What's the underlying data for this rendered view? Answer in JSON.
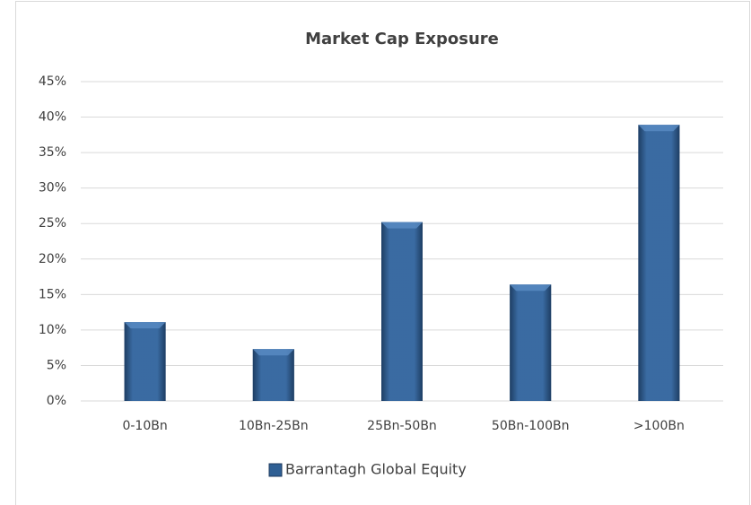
{
  "chart_data": {
    "type": "bar",
    "title": "Market Cap Exposure",
    "categories": [
      "0-10Bn",
      "10Bn-25Bn",
      "25Bn-50Bn",
      "50Bn-100Bn",
      ">100Bn"
    ],
    "series": [
      {
        "name": "Barrantagh Global Equity",
        "color": "#2f5f94",
        "values": [
          11.1,
          7.3,
          25.2,
          16.4,
          38.9
        ]
      }
    ],
    "ylim": [
      0,
      45
    ],
    "yticks": [
      {
        "value": 0,
        "label": "0%"
      },
      {
        "value": 5,
        "label": "5%"
      },
      {
        "value": 10,
        "label": "10%"
      },
      {
        "value": 15,
        "label": "15%"
      },
      {
        "value": 20,
        "label": "20%"
      },
      {
        "value": 25,
        "label": "25%"
      },
      {
        "value": 30,
        "label": "30%"
      },
      {
        "value": 35,
        "label": "35%"
      },
      {
        "value": 40,
        "label": "40%"
      },
      {
        "value": 45,
        "label": "45%"
      }
    ],
    "grid": true,
    "legend": "bottom"
  }
}
